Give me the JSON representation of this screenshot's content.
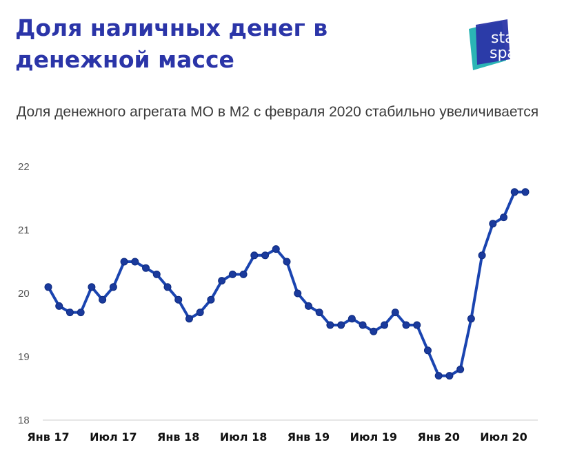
{
  "header": {
    "title": "Доля наличных денег в денежной массе",
    "subtitle": "Доля денежного агрегата МО в М2 с февраля 2020 стабильно увеличивается"
  },
  "logo": {
    "line1": "stat",
    "line2": "space",
    "color_dark": "#2b35a8",
    "color_teal": "#2bb5b5"
  },
  "colors": {
    "line": "#1a44b0",
    "marker": "#1a3a9c",
    "axis": "#cccccc"
  },
  "chart_data": {
    "type": "line",
    "title": "",
    "xlabel": "",
    "ylabel": "",
    "ylim": [
      18,
      22
    ],
    "yticks": [
      "18",
      "19",
      "20",
      "21",
      "22"
    ],
    "x_tick_labels": [
      "Янв 17",
      "Июл 17",
      "Янв 18",
      "Июл 18",
      "Янв 19",
      "Июл 19",
      "Янв 20",
      "Июл 20"
    ],
    "x_tick_positions": [
      0,
      6,
      12,
      18,
      24,
      30,
      36,
      42
    ],
    "grid": false,
    "series": [
      {
        "values": [
          20.1,
          19.8,
          19.7,
          19.7,
          20.1,
          19.9,
          20.1,
          20.5,
          20.5,
          20.4,
          20.3,
          20.1,
          19.9,
          19.6,
          19.7,
          19.9,
          20.2,
          20.3,
          20.3,
          20.6,
          20.6,
          20.7,
          20.5,
          20.0,
          19.8,
          19.7,
          19.5,
          19.5,
          19.6,
          19.5,
          19.4,
          19.5,
          19.7,
          19.5,
          19.5,
          19.1,
          18.7,
          18.7,
          18.8,
          19.6,
          20.6,
          21.1,
          21.2,
          21.6,
          21.6
        ]
      }
    ]
  }
}
